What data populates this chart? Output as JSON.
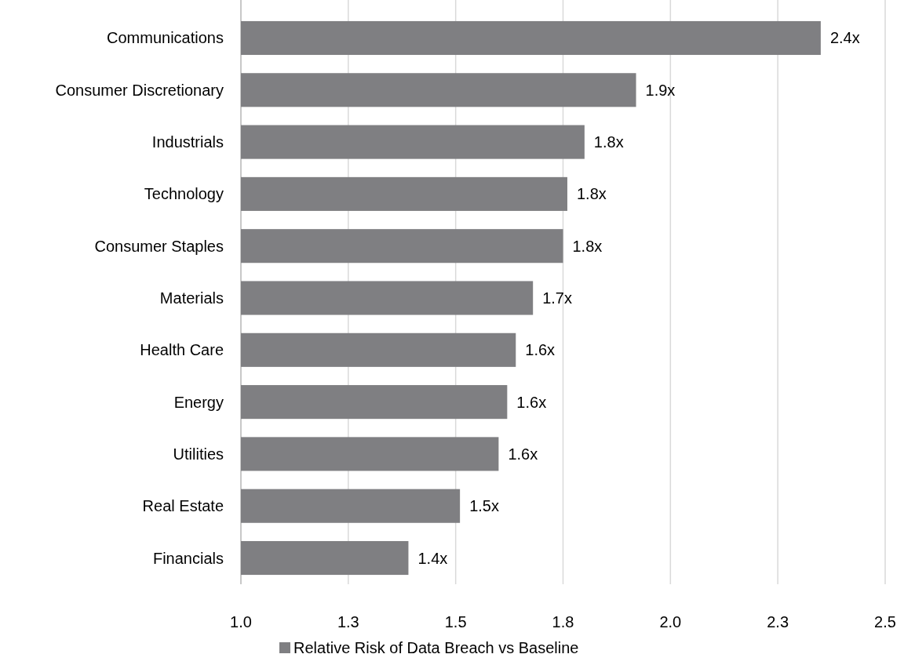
{
  "chart_data": {
    "type": "bar",
    "orientation": "horizontal",
    "categories": [
      "Communications",
      "Consumer Discretionary",
      "Industrials",
      "Technology",
      "Consumer Staples",
      "Materials",
      "Health Care",
      "Energy",
      "Utilities",
      "Real Estate",
      "Financials"
    ],
    "series": [
      {
        "name": "Relative Risk of Data Breach vs Baseline",
        "color": "#7f7f82",
        "values": [
          2.35,
          1.92,
          1.8,
          1.76,
          1.75,
          1.68,
          1.64,
          1.62,
          1.6,
          1.51,
          1.39
        ],
        "value_labels": [
          "2.4x",
          "1.9x",
          "1.8x",
          "1.8x",
          "1.8x",
          "1.7x",
          "1.6x",
          "1.6x",
          "1.6x",
          "1.5x",
          "1.4x"
        ]
      }
    ],
    "xlim": [
      1,
      2.5
    ],
    "xticks": [
      {
        "value": 1,
        "label": "1.0"
      },
      {
        "value": 1.25,
        "label": "1.3"
      },
      {
        "value": 1.5,
        "label": "1.5"
      },
      {
        "value": 1.75,
        "label": "1.8"
      },
      {
        "value": 2,
        "label": "2.0"
      },
      {
        "value": 2.25,
        "label": "2.3"
      },
      {
        "value": 2.5,
        "label": "2.5"
      }
    ],
    "grid": "x",
    "legend": "bottom"
  }
}
